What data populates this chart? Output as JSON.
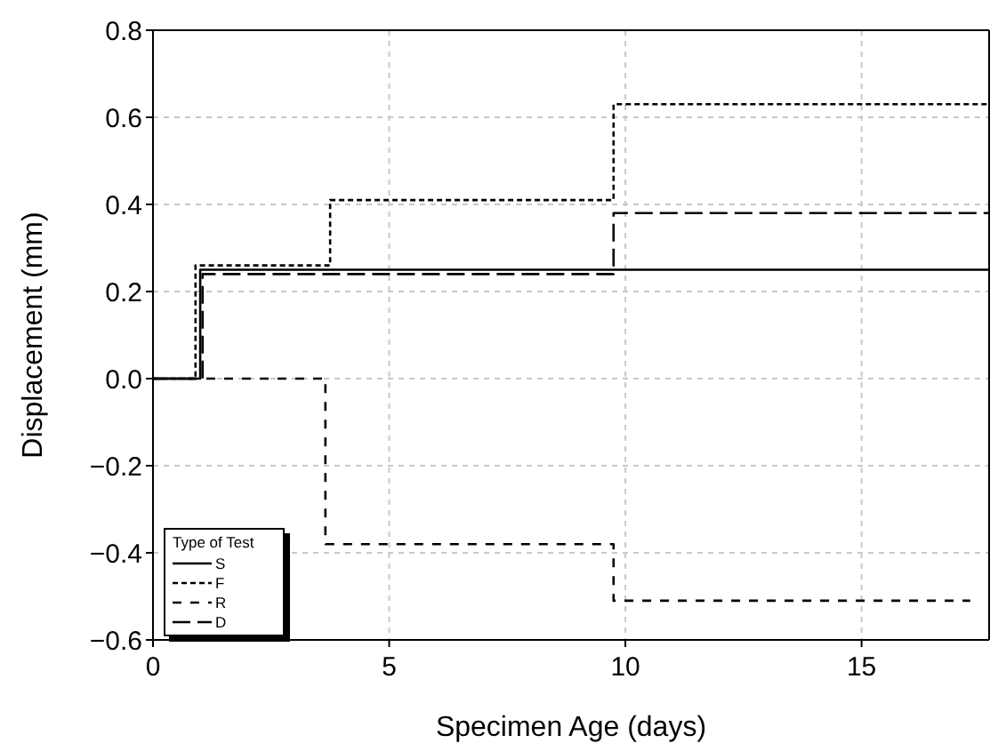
{
  "chart_data": {
    "type": "step",
    "xlabel": "Specimen Age (days)",
    "ylabel": "Displacement (mm)",
    "legend_title": "Type of Test",
    "xlim": [
      0,
      17.7
    ],
    "xticks": [
      0,
      5,
      10,
      15
    ],
    "ylim": [
      -0.6,
      0.8
    ],
    "yticks": [
      {
        "value": -0.6,
        "label": "−0.6"
      },
      {
        "value": -0.4,
        "label": "−0.4"
      },
      {
        "value": -0.2,
        "label": "−0.2"
      },
      {
        "value": 0,
        "label": "0.0"
      },
      {
        "value": 0.2,
        "label": "0.2"
      },
      {
        "value": 0.4,
        "label": "0.4"
      },
      {
        "value": 0.6,
        "label": "0.6"
      },
      {
        "value": 0.8,
        "label": "0.8"
      }
    ],
    "grid": true,
    "legend": "bottom left",
    "series": [
      {
        "name": "S",
        "color": "#000000",
        "line_style": "solid",
        "x": [
          0,
          1.0,
          17.7
        ],
        "values": [
          0,
          0.25,
          0.25
        ]
      },
      {
        "name": "F",
        "color": "#000000",
        "line_style": "dotted",
        "x": [
          0,
          0.9,
          3.75,
          9.75,
          17.7
        ],
        "values": [
          0,
          0.26,
          0.41,
          0.63,
          0.63
        ]
      },
      {
        "name": "R",
        "color": "#000000",
        "line_style": "dashed",
        "x": [
          0,
          3.65,
          9.75,
          17.3
        ],
        "values": [
          0,
          -0.38,
          -0.51,
          -0.51
        ]
      },
      {
        "name": "D",
        "color": "#000000",
        "line_style": "dashed",
        "x": [
          0,
          1.05,
          9.75,
          17.7
        ],
        "values": [
          0,
          0.24,
          0.38,
          0.38
        ]
      }
    ]
  }
}
